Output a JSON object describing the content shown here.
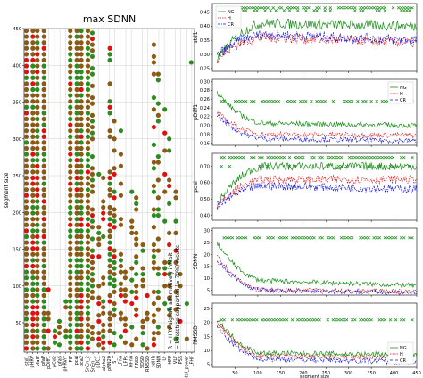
{
  "chart_data": [
    {
      "type": "scatter",
      "title": "max SDNN",
      "ylabel": "segment size",
      "xlabel": "",
      "ylim": [
        10,
        450
      ],
      "yticks": [
        50,
        100,
        150,
        200,
        250,
        300,
        350,
        400,
        450
      ],
      "grid": true,
      "categories": [
        "std1",
        "pHRV",
        "pfaIP",
        "pfaP",
        "pDiff1",
        "pCd2",
        "pfaS",
        "pHRVrr",
        "PIP",
        "pcai",
        "pca2",
        "SnEn_2",
        "SnEn_1",
        "pDC1",
        "alpha2",
        "pNN20",
        "S_T",
        "LFnu",
        "LFPs",
        "HFnu",
        "RRSD",
        "SDSD",
        "RMSSD",
        "sdHR",
        "SDNN",
        "LF",
        "HFP",
        "VLF",
        "PSS",
        "total_power",
        "LFHF"
      ],
      "annotation": "R = HRV signals alternatively inhibit\n= bootstrap supported (≥ 70%) results",
      "colors": {
        "green": "#2e8b20",
        "red": "#e01010",
        "brown": "#8b5a14"
      }
    },
    {
      "type": "line",
      "ylabel": "std1",
      "xlim": [
        0,
        450
      ],
      "ylim": [
        0.24,
        0.48
      ],
      "yticks": [
        0.25,
        0.3,
        0.35,
        0.4,
        0.45
      ],
      "legend": [
        "NG",
        "H",
        "CR"
      ],
      "legend_position": "top-left",
      "series_style": {
        "NG": "solid-green",
        "H": "dotted-red",
        "CR": "dashdot-blue"
      }
    },
    {
      "type": "line",
      "ylabel": "pDiff1",
      "xlim": [
        0,
        450
      ],
      "ylim": [
        0.155,
        0.305
      ],
      "yticks": [
        0.16,
        0.18,
        0.2,
        0.22,
        0.24,
        0.26,
        0.28,
        0.3
      ],
      "legend": [
        "NG",
        "H",
        "CR"
      ],
      "legend_position": "top-right"
    },
    {
      "type": "line",
      "ylabel": "pcai",
      "xlim": [
        0,
        450
      ],
      "ylim": [
        0.37,
        0.78
      ],
      "yticks": [
        0.4,
        0.5,
        0.6,
        0.7
      ]
    },
    {
      "type": "line",
      "ylabel": "SDNN",
      "xlim": [
        0,
        450
      ],
      "ylim": [
        3,
        31
      ],
      "yticks": [
        5,
        10,
        15,
        20,
        25,
        30
      ]
    },
    {
      "type": "line",
      "ylabel": "RMSSD",
      "xlabel": "segment size",
      "xlim": [
        0,
        450
      ],
      "ylim": [
        4,
        27
      ],
      "yticks": [
        5,
        10,
        15,
        20,
        25
      ],
      "xticks": [
        50,
        100,
        150,
        200,
        250,
        300,
        350,
        400,
        450
      ],
      "legend": [
        "NG",
        "H",
        "CR"
      ],
      "legend_position": "bottom-right"
    }
  ],
  "series_colors": {
    "NG": "#1a8f1a",
    "H": "#e01010",
    "CR": "#1010e0"
  }
}
